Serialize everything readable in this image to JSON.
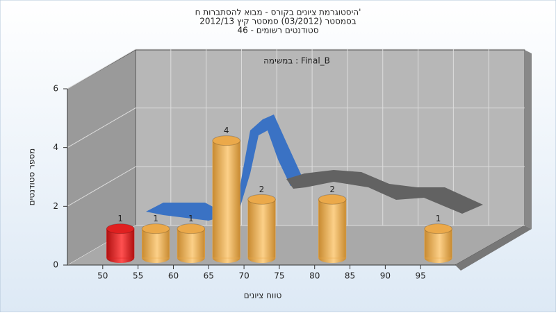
{
  "chart_data": {
    "type": "histogram",
    "title": "היסטוגרמת ציונים בקורס - מבוא להסתברות ח'",
    "subtitle": [
      "בסמסטר  (03/2012)  סמסטר קיץ 2012/13",
      "סטודנטים רשומים - 46"
    ],
    "annotation": "במשימה : Final_B",
    "x_label": "טווח ציונים",
    "y_label": "מספר סטודנטים",
    "bins": [
      50,
      55,
      60,
      65,
      70,
      75,
      80,
      85,
      90,
      95,
      100
    ],
    "values": [
      1,
      1,
      1,
      4,
      2,
      0,
      2,
      0,
      0,
      1
    ],
    "colors": [
      "#e02020",
      "#eba94a",
      "#eba94a",
      "#eba94a",
      "#eba94a",
      "#eba94a",
      "#eba94a",
      "#eba94a",
      "#eba94a",
      "#eba94a"
    ],
    "xlim": [
      45,
      100
    ],
    "xticks": [
      50,
      55,
      60,
      65,
      70,
      75,
      80,
      85,
      90,
      95
    ],
    "ylim": [
      0,
      6
    ],
    "yticks": [
      0,
      2,
      4,
      6
    ],
    "grid": true
  }
}
